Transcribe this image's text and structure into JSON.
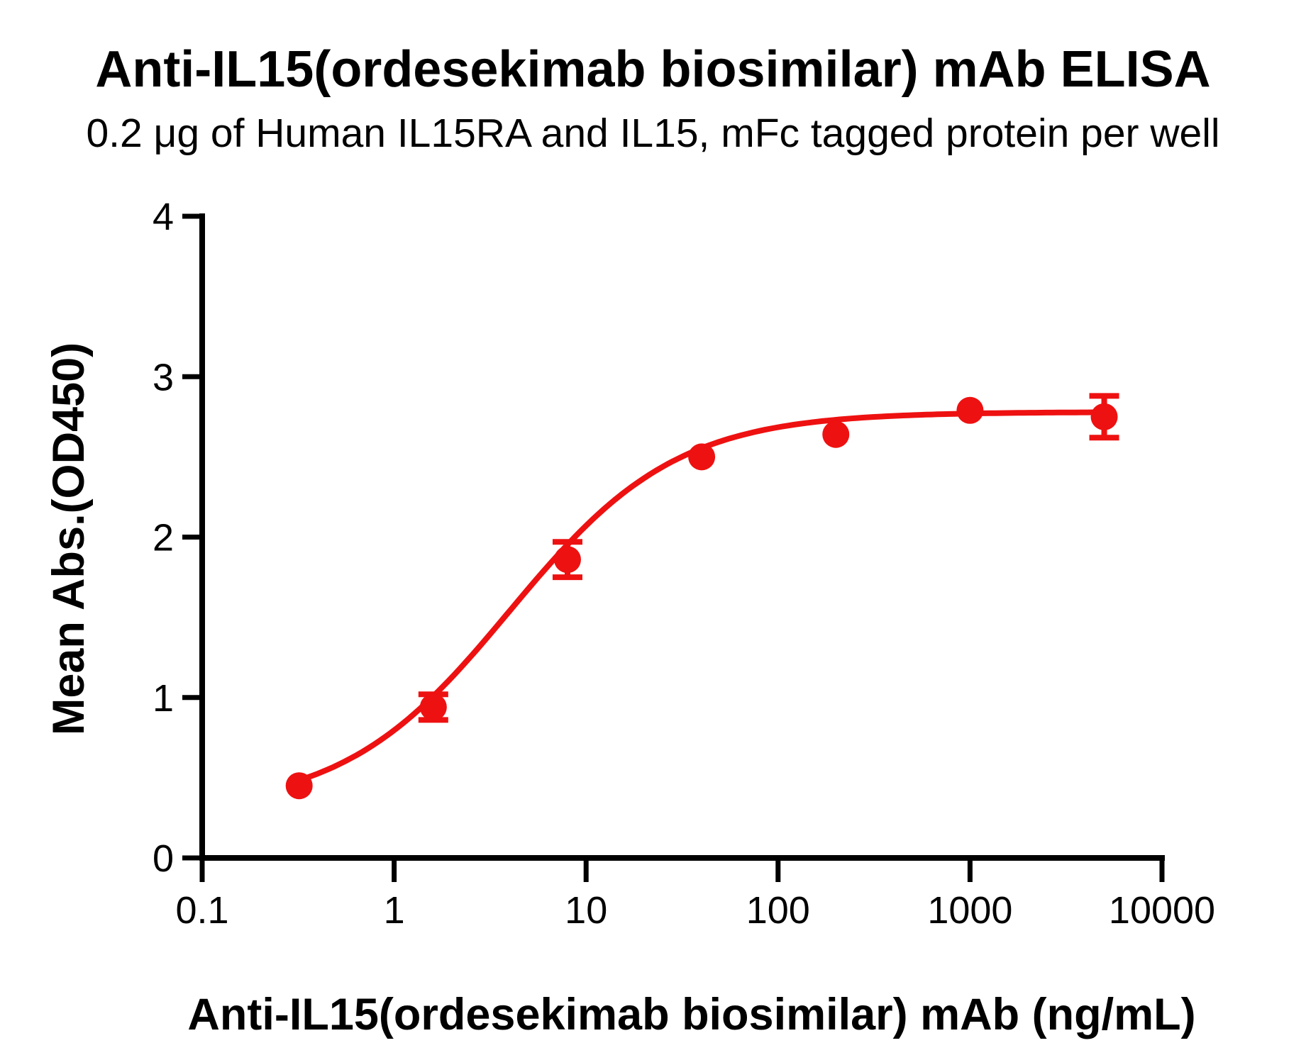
{
  "chart_data": {
    "type": "line",
    "title": "Anti-IL15(ordesekimab biosimilar) mAb ELISA",
    "subtitle": "0.2 μg of Human IL15RA and IL15, mFc tagged protein per well",
    "xlabel": "Anti-IL15(ordesekimab biosimilar) mAb (ng/mL)",
    "ylabel": "Mean Abs.(OD450)",
    "xscale": "log",
    "xlim": [
      0.1,
      10000
    ],
    "ylim": [
      0,
      4
    ],
    "grid": false,
    "legend_position": "none",
    "axis_color": "#000000",
    "x_ticks": [
      {
        "value": 0.1,
        "label": "0.1"
      },
      {
        "value": 1,
        "label": "1"
      },
      {
        "value": 10,
        "label": "10"
      },
      {
        "value": 100,
        "label": "100"
      },
      {
        "value": 1000,
        "label": "1000"
      },
      {
        "value": 10000,
        "label": "10000"
      }
    ],
    "y_ticks": [
      {
        "value": 0,
        "label": "0"
      },
      {
        "value": 1,
        "label": "1"
      },
      {
        "value": 2,
        "label": "2"
      },
      {
        "value": 3,
        "label": "3"
      },
      {
        "value": 4,
        "label": "4"
      }
    ],
    "series": [
      {
        "name": "Anti-IL15(ordesekimab biosimilar) mAb",
        "color": "#ee1111",
        "marker": "circle",
        "x": [
          0.32,
          1.6,
          8,
          40,
          200,
          1000,
          5000
        ],
        "y": [
          0.45,
          0.94,
          1.86,
          2.5,
          2.64,
          2.79,
          2.75
        ],
        "y_err": [
          0,
          0.08,
          0.11,
          0,
          0,
          0,
          0.13
        ],
        "fit_curve": {
          "model": "four_parameter_logistic",
          "bottom": 0.3,
          "top": 2.78,
          "ec50": 4.0,
          "hill": 1.0,
          "draw_from_x": 0.32,
          "draw_to_x": 5000
        }
      }
    ]
  }
}
